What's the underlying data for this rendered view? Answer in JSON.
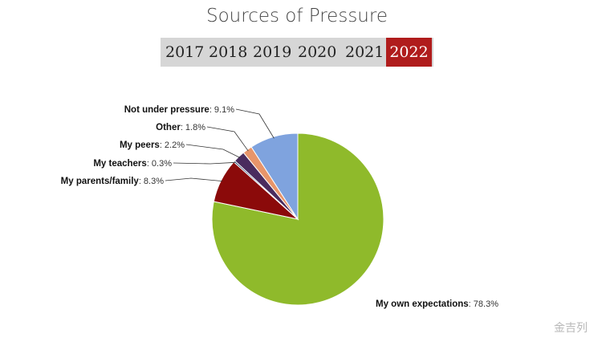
{
  "header": {
    "title": "Sources of Pressure"
  },
  "years": [
    {
      "label": "2017",
      "active": false
    },
    {
      "label": "2018",
      "active": false
    },
    {
      "label": "2019",
      "active": false
    },
    {
      "label": "2020",
      "active": false
    },
    {
      "label": "2021",
      "active": false
    },
    {
      "label": "2022",
      "active": true
    }
  ],
  "colors": {
    "active_tab": "#b01c1c",
    "tab_bar": "#d6d6d6"
  },
  "chart_data": {
    "type": "pie",
    "title": "Sources of Pressure",
    "slices": [
      {
        "name": "My own expectations",
        "value": 78.3,
        "display": "78.3%",
        "color": "#8fba2b"
      },
      {
        "name": "My parents/family",
        "value": 8.3,
        "display": "8.3%",
        "color": "#8b0a0a"
      },
      {
        "name": "My teachers",
        "value": 0.3,
        "display": "0.3%",
        "color": "#1f3d6b"
      },
      {
        "name": "My peers",
        "value": 2.2,
        "display": "2.2%",
        "color": "#4a2c5e"
      },
      {
        "name": "Other",
        "value": 1.8,
        "display": "1.8%",
        "color": "#e8956a"
      },
      {
        "name": "Not under pressure",
        "value": 9.1,
        "display": "9.1%",
        "color": "#7fa3de"
      }
    ]
  },
  "watermark": "金吉列"
}
